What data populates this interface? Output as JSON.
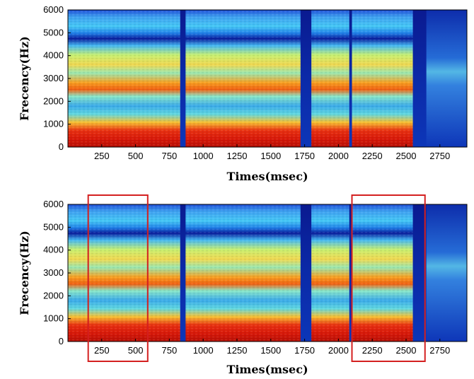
{
  "chart_data": [
    {
      "type": "heatmap",
      "panel": "upper",
      "xlabel": "Times(msec)",
      "ylabel": "Frecency(Hz)",
      "xlim": [
        0,
        2950
      ],
      "ylim": [
        0,
        6000
      ],
      "x_ticks": [
        "250",
        "500",
        "750",
        "1000",
        "1250",
        "1500",
        "1750",
        "2000",
        "2250",
        "2500",
        "2750"
      ],
      "y_ticks": [
        "0",
        "1000",
        "2000",
        "3000",
        "4000",
        "5000",
        "6000"
      ],
      "colormap": "jet",
      "segments_ms": [
        [
          0,
          830
        ],
        [
          870,
          1720
        ],
        [
          1800,
          2080
        ],
        [
          2100,
          2550
        ],
        [
          2650,
          2950
        ]
      ],
      "highlight_boxes_ms": []
    },
    {
      "type": "heatmap",
      "panel": "lower",
      "xlabel": "Times(msec)",
      "ylabel": "Frecency(Hz)",
      "xlim": [
        0,
        2950
      ],
      "ylim": [
        0,
        6000
      ],
      "x_ticks": [
        "250",
        "500",
        "750",
        "1000",
        "1250",
        "1500",
        "1750",
        "2000",
        "2250",
        "2500",
        "2750"
      ],
      "y_ticks": [
        "0",
        "1000",
        "2000",
        "3000",
        "4000",
        "5000",
        "6000"
      ],
      "colormap": "jet",
      "segments_ms": [
        [
          0,
          830
        ],
        [
          870,
          1720
        ],
        [
          1800,
          2080
        ],
        [
          2100,
          2550
        ],
        [
          2650,
          2950
        ]
      ],
      "highlight_boxes_ms": [
        [
          150,
          590
        ],
        [
          2100,
          2640
        ]
      ],
      "highlight_color": "#d42020"
    }
  ]
}
